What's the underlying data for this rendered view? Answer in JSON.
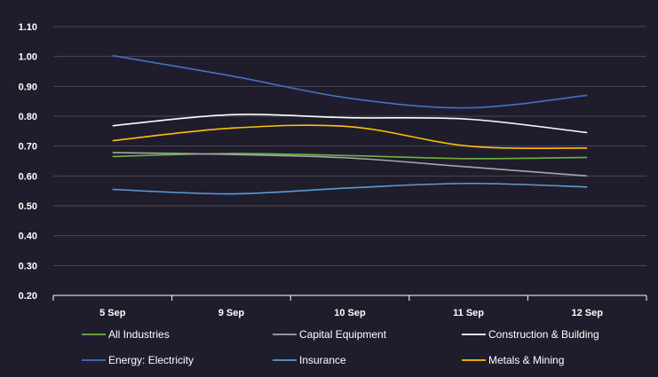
{
  "chart_data": {
    "type": "line",
    "title": "",
    "xlabel": "",
    "ylabel": "",
    "categories": [
      "5 Sep",
      "9 Sep",
      "10 Sep",
      "11 Sep",
      "12 Sep"
    ],
    "ylim": [
      0.2,
      1.1
    ],
    "y_ticks": [
      "0.20",
      "0.30",
      "0.40",
      "0.50",
      "0.60",
      "0.70",
      "0.80",
      "0.90",
      "1.00",
      "1.10"
    ],
    "grid": true,
    "legend_position": "bottom",
    "series": [
      {
        "name": "All Industries",
        "color": "#6db33f",
        "values": [
          0.665,
          0.675,
          0.668,
          0.658,
          0.662
        ]
      },
      {
        "name": "Capital Equipment",
        "color": "#a6a6a6",
        "values": [
          0.678,
          0.672,
          0.66,
          0.63,
          0.6
        ]
      },
      {
        "name": "Construction & Building",
        "color": "#ffffff",
        "values": [
          0.768,
          0.805,
          0.795,
          0.79,
          0.745
        ]
      },
      {
        "name": "Energy: Electricity",
        "color": "#4472c4",
        "values": [
          1.003,
          0.935,
          0.86,
          0.828,
          0.87
        ]
      },
      {
        "name": "Insurance",
        "color": "#5b9bd5",
        "values": [
          0.555,
          0.54,
          0.56,
          0.575,
          0.563
        ]
      },
      {
        "name": "Metals & Mining",
        "color": "#ffc000",
        "values": [
          0.718,
          0.76,
          0.765,
          0.7,
          0.693
        ]
      }
    ]
  }
}
